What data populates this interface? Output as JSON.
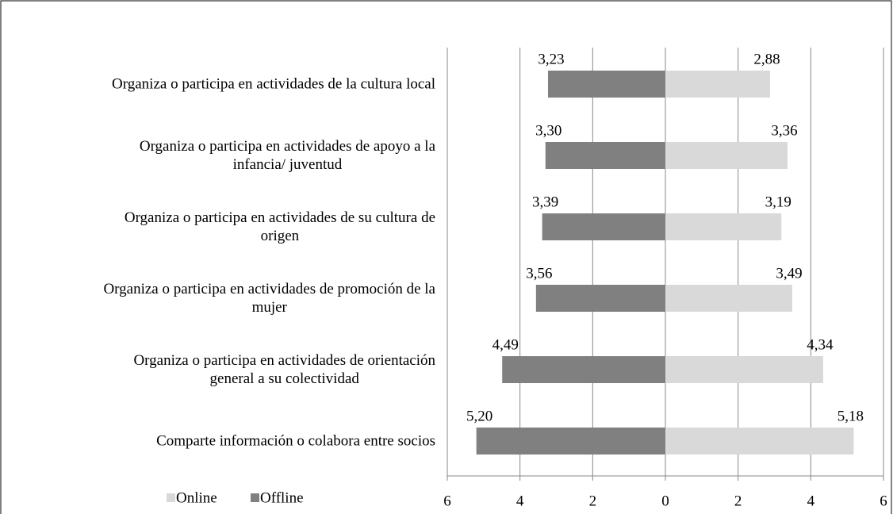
{
  "chart_data": {
    "type": "butterfly",
    "categories": [
      "Organiza o participa en actividades de la cultura local",
      "Organiza o participa en actividades de apoyo a la\ninfancia/ juventud",
      "Organiza o participa en actividades de su cultura de\norigen",
      "Organiza o participa en actividades de promoción de la\nmujer",
      "Organiza o participa en actividades de orientación\ngeneral a su colectividad",
      "Comparte información o colabora entre socios"
    ],
    "series": [
      {
        "name": "Online",
        "color": "#d9d9d9",
        "values": [
          2.88,
          3.36,
          3.19,
          3.49,
          4.34,
          5.18
        ],
        "value_labels": [
          "2,88",
          "3,36",
          "3,19",
          "3,49",
          "4,34",
          "5,18"
        ]
      },
      {
        "name": "Offline",
        "color": "#808080",
        "values": [
          3.23,
          3.3,
          3.39,
          3.56,
          4.49,
          5.2
        ],
        "value_labels": [
          "3,23",
          "3,30",
          "3,39",
          "3,56",
          "4,49",
          "5,20"
        ]
      }
    ],
    "xlim": [
      0,
      6
    ],
    "xticks": [
      0,
      2,
      4,
      6
    ],
    "grid": true,
    "legend": "bottom-left"
  }
}
